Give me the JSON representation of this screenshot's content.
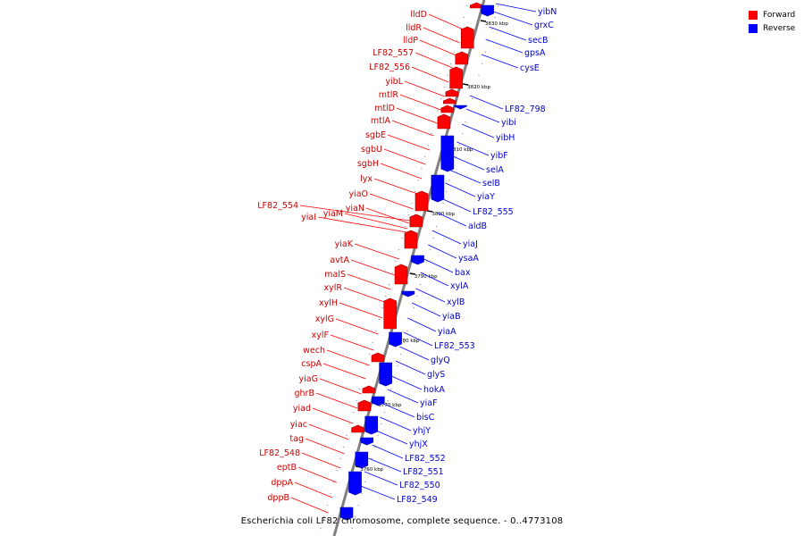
{
  "legend": {
    "forward": {
      "label": "Forward",
      "color": "#ff0000"
    },
    "reverse": {
      "label": "Reverse",
      "color": "#0000ff"
    }
  },
  "caption": "Escherichia coli LF82 chromosome, complete sequence. - 0..4773108",
  "colors": {
    "backbone": "#808080",
    "forward_label": "#cc0000",
    "reverse_label": "#0000cc"
  },
  "ticks": [
    "3830 kbp",
    "3820 kbp",
    "3810 kbp",
    "3800 kbp",
    "3790 kbp",
    "3780 kbp",
    "3770 kbp",
    "3760 kbp"
  ],
  "forward_genes": [
    "lldD",
    "lldR",
    "lldP",
    "LF82_557",
    "LF82_556",
    "yibL",
    "mtlR",
    "mtlD",
    "mtlA",
    "sgbE",
    "sgbU",
    "sgbH",
    "lyx",
    "yiaO",
    "yiaN",
    "LF82_554",
    "yiaM",
    "yiaI",
    "yiaK",
    "avtA",
    "malS",
    "xylR",
    "xylH",
    "xylG",
    "xylF",
    "wech",
    "cspA",
    "yiaG",
    "ghrB",
    "yiad",
    "yiac",
    "tag",
    "LF82_548",
    "eptB",
    "dppA",
    "dppB"
  ],
  "reverse_genes": [
    "yibN",
    "grxC",
    "secB",
    "gpsA",
    "cysE",
    "LF82_798",
    "yibi",
    "yibH",
    "yibF",
    "selA",
    "selB",
    "yiaY",
    "LF82_555",
    "aldB",
    "yiaJ",
    "ysaA",
    "bax",
    "xylA",
    "xylB",
    "yiaB",
    "yiaA",
    "LF82_553",
    "glyQ",
    "glyS",
    "hokA",
    "yiaF",
    "bisC",
    "yhjY",
    "yhjX",
    "LF82_552",
    "LF82_551",
    "LF82_550",
    "LF82_549"
  ]
}
